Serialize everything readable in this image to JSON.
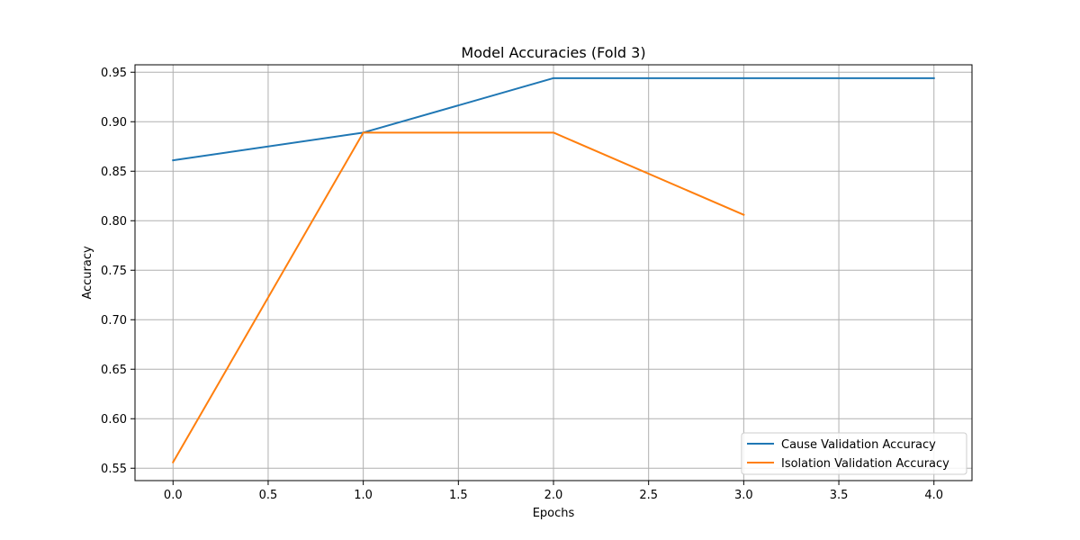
{
  "chart_data": {
    "type": "line",
    "title": "Model Accuracies (Fold 3)",
    "xlabel": "Epochs",
    "ylabel": "Accuracy",
    "xlim": [
      -0.2,
      4.2
    ],
    "ylim": [
      0.5375,
      0.9575
    ],
    "xticks": [
      0.0,
      0.5,
      1.0,
      1.5,
      2.0,
      2.5,
      3.0,
      3.5,
      4.0
    ],
    "xtick_labels": [
      "0.0",
      "0.5",
      "1.0",
      "1.5",
      "2.0",
      "2.5",
      "3.0",
      "3.5",
      "4.0"
    ],
    "yticks": [
      0.55,
      0.6,
      0.65,
      0.7,
      0.75,
      0.8,
      0.85,
      0.9,
      0.95
    ],
    "ytick_labels": [
      "0.55",
      "0.60",
      "0.65",
      "0.70",
      "0.75",
      "0.80",
      "0.85",
      "0.90",
      "0.95"
    ],
    "grid": true,
    "legend_position": "lower-right",
    "series": [
      {
        "name": "Cause Validation Accuracy",
        "color": "#1f77b4",
        "x": [
          0,
          1,
          2,
          3,
          4
        ],
        "y": [
          0.861,
          0.889,
          0.944,
          0.944,
          0.944
        ]
      },
      {
        "name": "Isolation Validation Accuracy",
        "color": "#ff7f0e",
        "x": [
          0,
          1,
          2,
          3
        ],
        "y": [
          0.556,
          0.889,
          0.889,
          0.806
        ]
      }
    ]
  }
}
